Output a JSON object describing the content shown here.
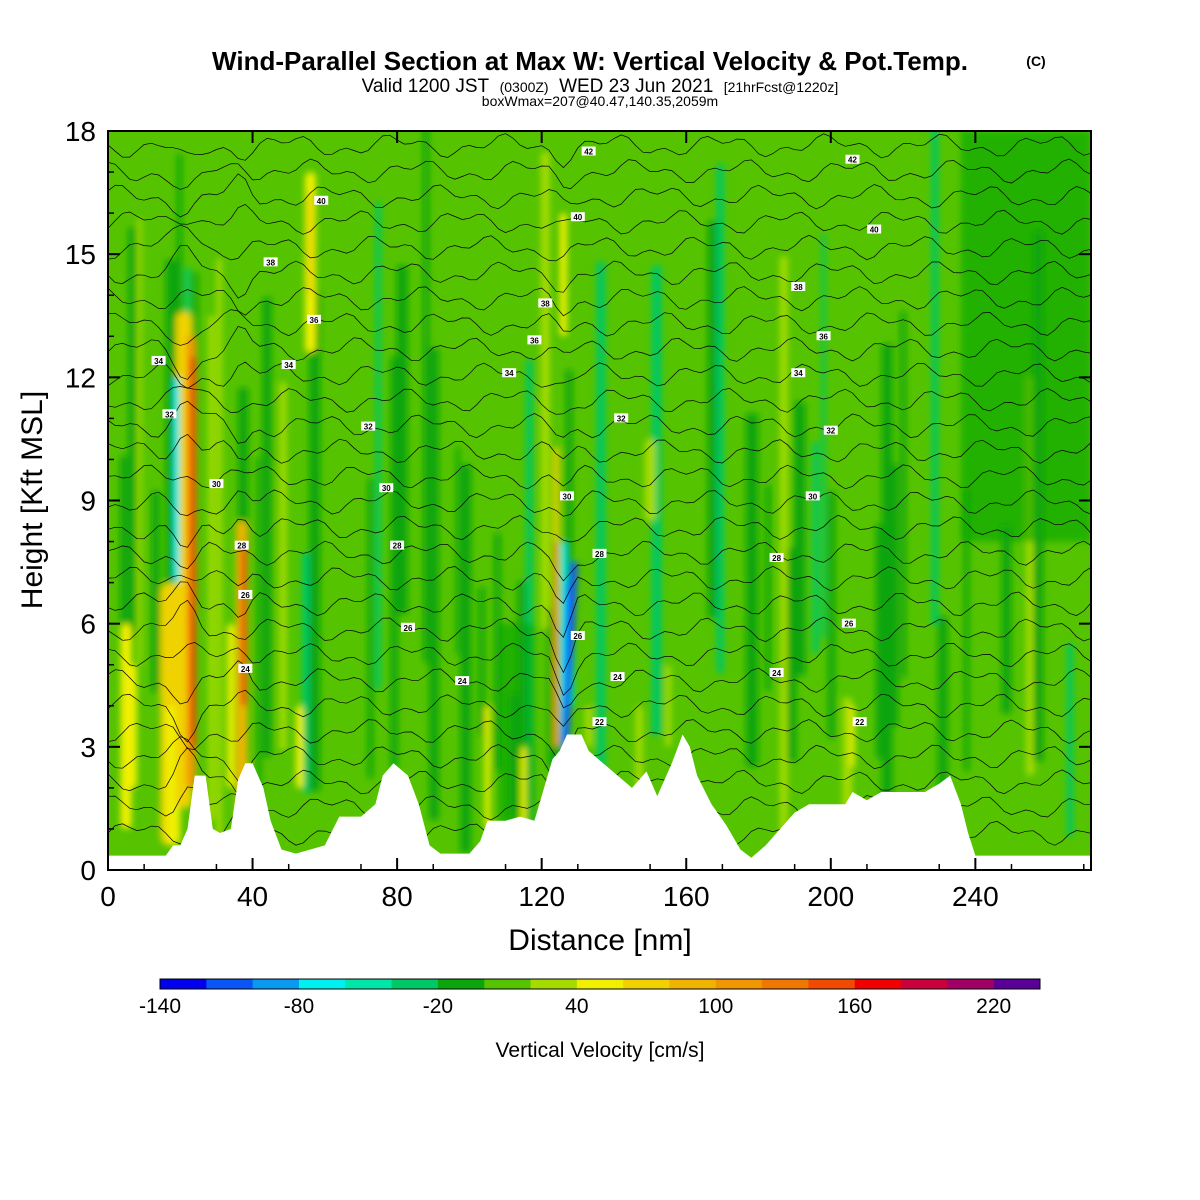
{
  "title": {
    "main": "Wind-Parallel Section at Max W: Vertical Velocity & Pot.Temp.",
    "copyright": "(C)",
    "valid_line": {
      "a": "Valid 1200 JST",
      "b": "(0300Z)",
      "c": "WED 23 Jun 2021",
      "d": "[21hrFcst@1220z]"
    },
    "box_line": "boxWmax=207@40.47,140.35,2059m"
  },
  "chart_data": {
    "type": "heatmap",
    "xlabel": "Distance [nm]",
    "ylabel": "Height [Kft MSL]",
    "xlim": [
      0,
      272
    ],
    "ylim": [
      0,
      18
    ],
    "x_ticks": [
      0,
      40,
      80,
      120,
      160,
      200,
      240
    ],
    "y_ticks": [
      0,
      3,
      6,
      9,
      12,
      15,
      18
    ],
    "colorbar": {
      "label": "Vertical Velocity [cm/s]",
      "min": -140,
      "max": 240,
      "step": 20,
      "tick_values": [
        -140,
        -80,
        -20,
        40,
        100,
        160,
        220
      ],
      "colors": [
        "#0000ee",
        "#0a55f5",
        "#0a99f0",
        "#00f0f0",
        "#00e6a8",
        "#00c864",
        "#0aa50a",
        "#55c300",
        "#a5dc00",
        "#f0f000",
        "#f0d200",
        "#f0b400",
        "#f09600",
        "#f07800",
        "#f04b00",
        "#f00000",
        "#c8003c",
        "#a00064",
        "#5a0096"
      ]
    },
    "terrain_kft": [
      [
        0,
        0.35
      ],
      [
        6,
        0.35
      ],
      [
        12,
        0.35
      ],
      [
        16,
        0.35
      ],
      [
        18,
        0.6
      ],
      [
        20,
        0.6
      ],
      [
        22,
        1.0
      ],
      [
        24,
        2.3
      ],
      [
        27,
        2.3
      ],
      [
        29,
        1.0
      ],
      [
        31,
        0.9
      ],
      [
        34,
        1.0
      ],
      [
        36,
        2.2
      ],
      [
        38,
        2.6
      ],
      [
        40,
        2.6
      ],
      [
        43,
        2.0
      ],
      [
        45,
        1.2
      ],
      [
        48,
        0.5
      ],
      [
        52,
        0.4
      ],
      [
        56,
        0.5
      ],
      [
        60,
        0.6
      ],
      [
        64,
        1.3
      ],
      [
        70,
        1.3
      ],
      [
        74,
        1.6
      ],
      [
        76,
        2.3
      ],
      [
        79,
        2.6
      ],
      [
        83,
        2.3
      ],
      [
        86,
        1.6
      ],
      [
        89,
        0.6
      ],
      [
        92,
        0.4
      ],
      [
        100,
        0.4
      ],
      [
        103,
        0.7
      ],
      [
        105,
        1.2
      ],
      [
        110,
        1.2
      ],
      [
        114,
        1.3
      ],
      [
        118,
        1.2
      ],
      [
        121,
        2.1
      ],
      [
        123,
        2.7
      ],
      [
        125,
        2.9
      ],
      [
        127,
        3.3
      ],
      [
        131,
        3.3
      ],
      [
        133,
        2.9
      ],
      [
        137,
        2.6
      ],
      [
        141,
        2.3
      ],
      [
        145,
        2.0
      ],
      [
        149,
        2.4
      ],
      [
        152,
        1.8
      ],
      [
        156,
        2.6
      ],
      [
        159,
        3.3
      ],
      [
        161,
        3.0
      ],
      [
        163,
        2.3
      ],
      [
        167,
        1.6
      ],
      [
        171,
        1.1
      ],
      [
        175,
        0.5
      ],
      [
        178,
        0.3
      ],
      [
        182,
        0.6
      ],
      [
        186,
        1.0
      ],
      [
        190,
        1.4
      ],
      [
        194,
        1.6
      ],
      [
        200,
        1.6
      ],
      [
        204,
        1.6
      ],
      [
        206,
        1.9
      ],
      [
        210,
        1.7
      ],
      [
        214,
        1.9
      ],
      [
        220,
        1.9
      ],
      [
        226,
        1.9
      ],
      [
        230,
        2.1
      ],
      [
        233,
        2.3
      ],
      [
        236,
        1.6
      ],
      [
        238,
        0.9
      ],
      [
        240,
        0.35
      ],
      [
        248,
        0.35
      ],
      [
        260,
        0.35
      ],
      [
        272,
        0.35
      ]
    ],
    "contour_labels": [
      {
        "v": "42",
        "x": 133,
        "y": 17.5
      },
      {
        "v": "42",
        "x": 206,
        "y": 17.3
      },
      {
        "v": "40",
        "x": 59,
        "y": 16.3
      },
      {
        "v": "40",
        "x": 130,
        "y": 15.9
      },
      {
        "v": "40",
        "x": 212,
        "y": 15.6
      },
      {
        "v": "38",
        "x": 45,
        "y": 14.8
      },
      {
        "v": "38",
        "x": 191,
        "y": 14.2
      },
      {
        "v": "38",
        "x": 121,
        "y": 13.8
      },
      {
        "v": "36",
        "x": 57,
        "y": 13.4
      },
      {
        "v": "36",
        "x": 198,
        "y": 13.0
      },
      {
        "v": "36",
        "x": 118,
        "y": 12.9
      },
      {
        "v": "34",
        "x": 14,
        "y": 12.4
      },
      {
        "v": "34",
        "x": 50,
        "y": 12.3
      },
      {
        "v": "34",
        "x": 111,
        "y": 12.1
      },
      {
        "v": "34",
        "x": 191,
        "y": 12.1
      },
      {
        "v": "32",
        "x": 17,
        "y": 11.1
      },
      {
        "v": "32",
        "x": 142,
        "y": 11.0
      },
      {
        "v": "32",
        "x": 72,
        "y": 10.8
      },
      {
        "v": "32",
        "x": 200,
        "y": 10.7
      },
      {
        "v": "30",
        "x": 30,
        "y": 9.4
      },
      {
        "v": "30",
        "x": 77,
        "y": 9.3
      },
      {
        "v": "30",
        "x": 127,
        "y": 9.1
      },
      {
        "v": "30",
        "x": 195,
        "y": 9.1
      },
      {
        "v": "28",
        "x": 37,
        "y": 7.9
      },
      {
        "v": "28",
        "x": 80,
        "y": 7.9
      },
      {
        "v": "28",
        "x": 136,
        "y": 7.7
      },
      {
        "v": "28",
        "x": 185,
        "y": 7.6
      },
      {
        "v": "26",
        "x": 38,
        "y": 6.7
      },
      {
        "v": "26",
        "x": 83,
        "y": 5.9
      },
      {
        "v": "26",
        "x": 130,
        "y": 5.7
      },
      {
        "v": "26",
        "x": 205,
        "y": 6.0
      },
      {
        "v": "24",
        "x": 38,
        "y": 4.9
      },
      {
        "v": "24",
        "x": 98,
        "y": 4.6
      },
      {
        "v": "24",
        "x": 141,
        "y": 4.7
      },
      {
        "v": "24",
        "x": 185,
        "y": 4.8
      },
      {
        "v": "22",
        "x": 136,
        "y": 3.6
      },
      {
        "v": "22",
        "x": 208,
        "y": 3.6
      }
    ]
  }
}
